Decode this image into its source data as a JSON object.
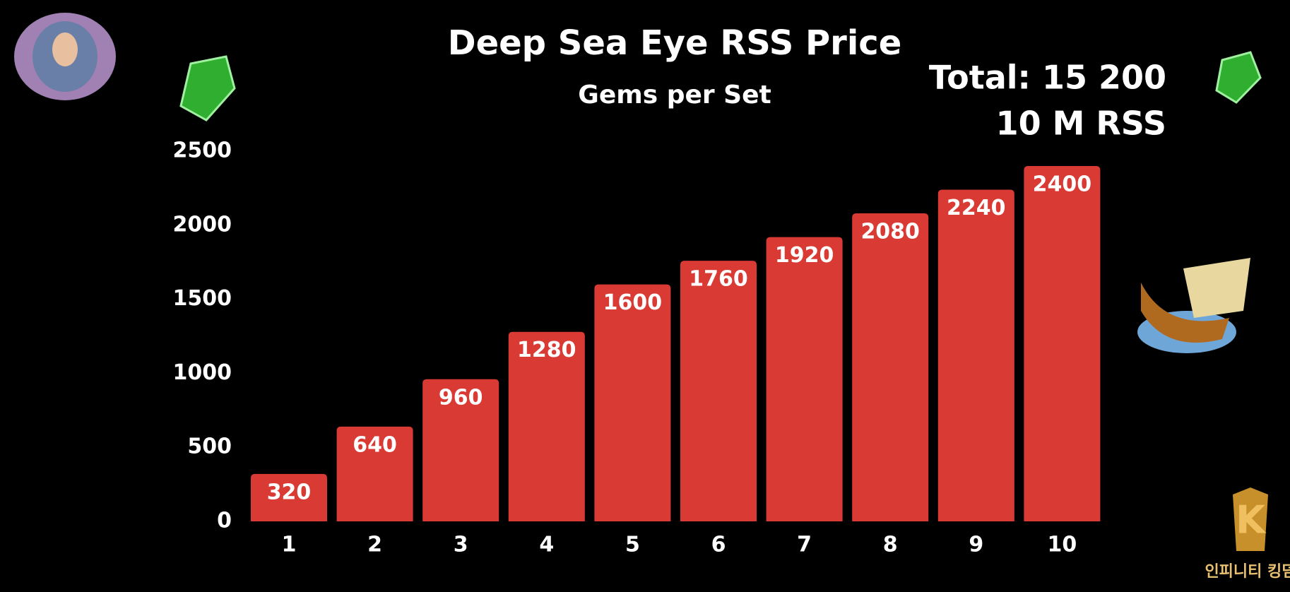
{
  "chart_data": {
    "type": "bar",
    "title": "Deep Sea Eye RSS Price",
    "subtitle": "Gems per Set",
    "annotations": [
      "Total: 15 200",
      "10 M RSS"
    ],
    "watermark": "인피니티 킹덤",
    "categories": [
      "1",
      "2",
      "3",
      "4",
      "5",
      "6",
      "7",
      "8",
      "9",
      "10"
    ],
    "values": [
      320,
      640,
      960,
      1280,
      1600,
      1760,
      1920,
      2080,
      2240,
      2400
    ],
    "color": "#d93a34",
    "ylim": [
      0,
      2500
    ],
    "yticks": [
      0,
      500,
      1000,
      1500,
      2000,
      2500
    ],
    "grid": false
  }
}
